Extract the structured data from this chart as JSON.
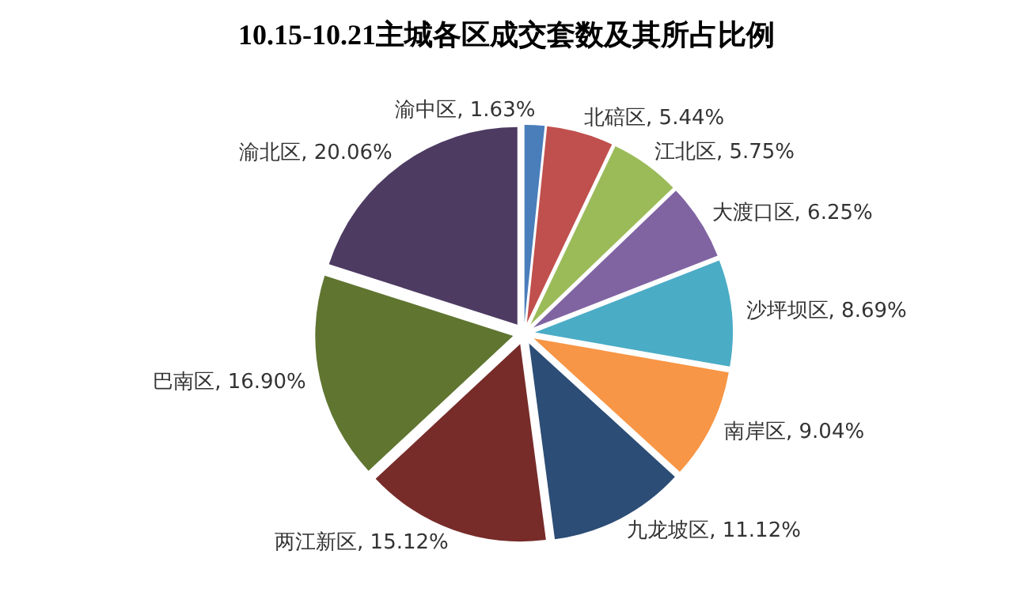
{
  "chart_data": {
    "type": "pie",
    "title": "10.15-10.21主城各区成交套数及其所占比例",
    "categories": [
      "渝中区",
      "北碚区",
      "江北区",
      "大渡口区",
      "沙坪坝区",
      "南岸区",
      "九龙坡区",
      "两江新区",
      "巴南区",
      "渝北区"
    ],
    "values": [
      1.63,
      5.44,
      5.75,
      6.25,
      8.69,
      9.04,
      11.12,
      15.12,
      16.9,
      20.06
    ],
    "value_labels": [
      "1.63%",
      "5.44%",
      "5.75%",
      "6.25%",
      "8.69%",
      "9.04%",
      "11.12%",
      "15.12%",
      "16.90%",
      "20.06%"
    ],
    "colors": [
      "#4a7ebb",
      "#c0504d",
      "#9bbb59",
      "#8064a2",
      "#4bacc6",
      "#f79646",
      "#2c4d75",
      "#772c2a",
      "#5f7530",
      "#4d3b62"
    ],
    "legend": false
  }
}
